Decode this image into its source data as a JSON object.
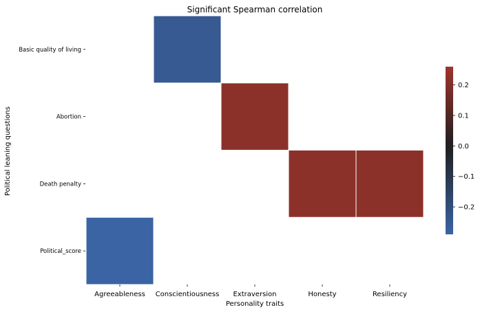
{
  "chart_data": {
    "type": "heatmap",
    "title": "Significant Spearman correlation",
    "xlabel": "Personality traits",
    "ylabel": "Political leaning questions",
    "x_categories": [
      "Agreeableness",
      "Conscientiousness",
      "Extraversion",
      "Honesty",
      "Resiliency"
    ],
    "y_categories": [
      "Basic quality of living",
      "Abortion",
      "Death penalty",
      "Political_score"
    ],
    "cells": [
      {
        "x": "Conscientiousness",
        "y": "Basic quality of living",
        "value": -0.25
      },
      {
        "x": "Extraversion",
        "y": "Abortion",
        "value": 0.22
      },
      {
        "x": "Honesty",
        "y": "Death penalty",
        "value": 0.22
      },
      {
        "x": "Resiliency",
        "y": "Death penalty",
        "value": 0.22
      },
      {
        "x": "Agreeableness",
        "y": "Political_score",
        "value": -0.29
      }
    ],
    "colorbar": {
      "range": [
        -0.29,
        0.26
      ],
      "ticks": [
        0.2,
        0.1,
        0.0,
        -0.1,
        -0.2
      ],
      "tick_labels": [
        "0.2",
        "0.1",
        "0.0",
        "−0.1",
        "−0.2"
      ],
      "low_color": "#3a64a3",
      "mid_color": "#1f1f1f",
      "high_color": "#a0342c"
    },
    "grid": false,
    "legend": "colorbar right"
  }
}
